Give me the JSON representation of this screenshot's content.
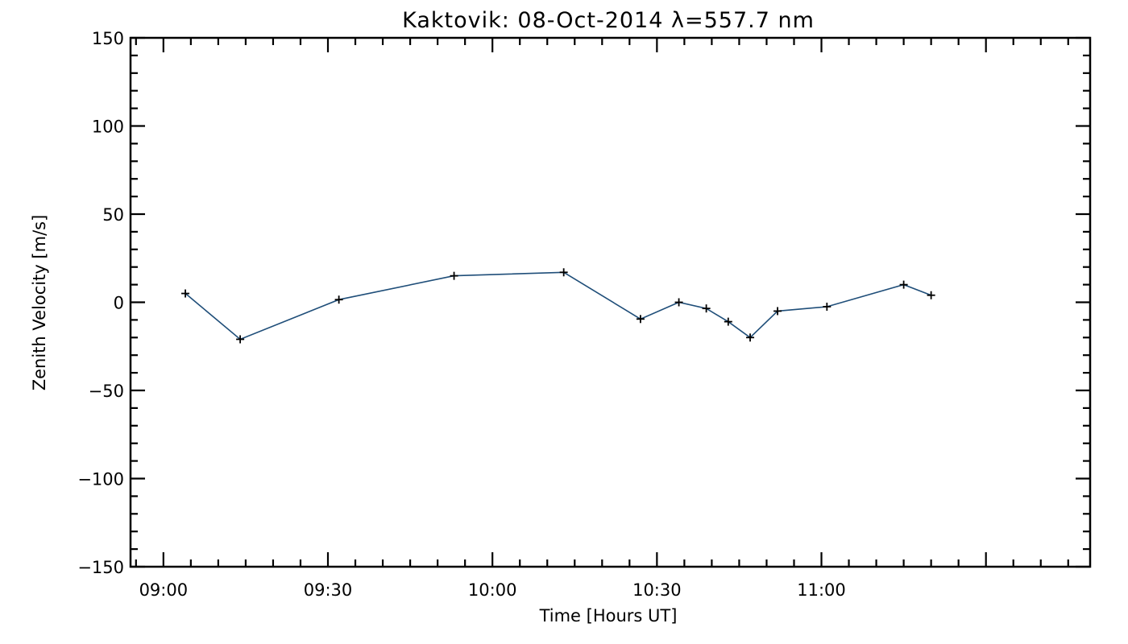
{
  "chart_data": {
    "type": "line",
    "title": "Kaktovik: 08-Oct-2014 λ=557.7 nm",
    "xlabel": "Time [Hours UT]",
    "ylabel": "Zenith Velocity [m/s]",
    "x_unit": "HH:MM UT",
    "xlim": [
      "08:54",
      "11:49"
    ],
    "ylim": [
      -150,
      150
    ],
    "grid": false,
    "x_ticks": [
      "09:00",
      "09:30",
      "10:00",
      "10:30",
      "11:00"
    ],
    "y_ticks": [
      150,
      100,
      50,
      0,
      -50,
      -100,
      -150
    ],
    "y_tick_labels": [
      "150",
      "100",
      "50",
      "0",
      "−50",
      "−100",
      "−150"
    ],
    "line_color": "#1f4e79",
    "marker": "plus",
    "series": [
      {
        "x": [
          "09:04",
          "09:14",
          "09:32",
          "09:53",
          "10:13",
          "10:27",
          "10:34",
          "10:39",
          "10:43",
          "10:47",
          "10:52",
          "11:01",
          "11:15",
          "11:20"
        ],
        "values": [
          5,
          -21,
          1.5,
          15,
          17,
          -9.5,
          0,
          -3.5,
          -11,
          -20,
          -5,
          -2.5,
          10,
          4
        ]
      }
    ]
  }
}
